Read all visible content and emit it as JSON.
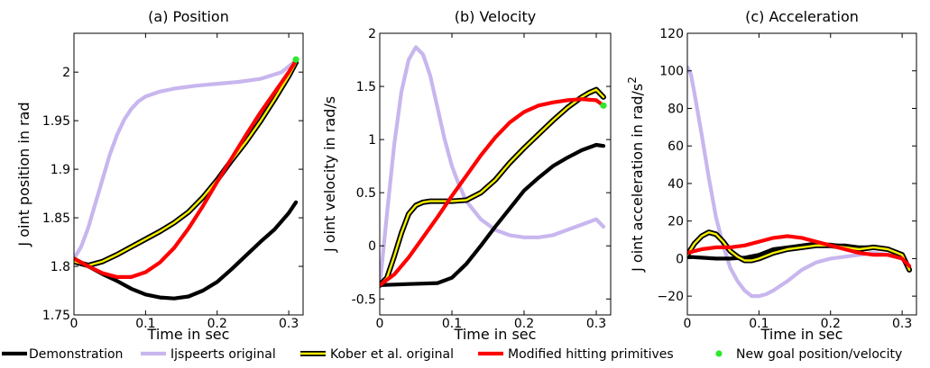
{
  "colors": {
    "demonstration": "#000000",
    "ijspeert": "#c8b6ee",
    "kober_fill": "#f5f000",
    "kober_edge": "#000000",
    "modified": "#ff0000",
    "goal": "#2ee82e"
  },
  "legend": {
    "placement": "bottom",
    "entries": [
      {
        "key": "demonstration",
        "label": "Demonstration"
      },
      {
        "key": "ijspeert",
        "label": "Ijspeerts original"
      },
      {
        "key": "kober",
        "label": "Kober et al. original"
      },
      {
        "key": "modified",
        "label": "Modified hitting primitives"
      },
      {
        "key": "goal",
        "label": "New goal position/velocity"
      }
    ]
  },
  "chart_data": [
    {
      "type": "line",
      "title": "(a) Position",
      "xlabel": "Time in sec",
      "ylabel": "J oint position in rad",
      "xlim": [
        0,
        0.32
      ],
      "ylim": [
        1.75,
        2.04
      ],
      "xticks": [
        0,
        0.1,
        0.2,
        0.3
      ],
      "xticklabels": [
        "0",
        "0.1",
        "0.2",
        "0.3"
      ],
      "yticks": [
        1.75,
        1.8,
        1.85,
        1.9,
        1.95,
        2.0
      ],
      "yticklabels": [
        "1.75",
        "1.8",
        "1.85",
        "1.9",
        "1.95",
        "2"
      ],
      "grid": false,
      "series": [
        {
          "key": "ijspeert",
          "x": [
            0,
            0.01,
            0.02,
            0.03,
            0.04,
            0.05,
            0.06,
            0.07,
            0.08,
            0.09,
            0.1,
            0.12,
            0.14,
            0.17,
            0.2,
            0.23,
            0.26,
            0.29,
            0.31
          ],
          "y": [
            1.808,
            1.82,
            1.84,
            1.865,
            1.89,
            1.915,
            1.935,
            1.951,
            1.962,
            1.97,
            1.975,
            1.98,
            1.983,
            1.986,
            1.988,
            1.99,
            1.993,
            2.0,
            2.012
          ]
        },
        {
          "key": "demonstration",
          "x": [
            0,
            0.02,
            0.04,
            0.06,
            0.08,
            0.1,
            0.12,
            0.14,
            0.16,
            0.18,
            0.2,
            0.22,
            0.24,
            0.26,
            0.28,
            0.3,
            0.31
          ],
          "y": [
            1.808,
            1.8,
            1.792,
            1.785,
            1.777,
            1.771,
            1.768,
            1.767,
            1.769,
            1.775,
            1.784,
            1.797,
            1.811,
            1.825,
            1.838,
            1.855,
            1.866
          ]
        },
        {
          "key": "kober",
          "x": [
            0,
            0.02,
            0.04,
            0.06,
            0.08,
            0.1,
            0.12,
            0.14,
            0.16,
            0.18,
            0.2,
            0.22,
            0.24,
            0.26,
            0.28,
            0.3,
            0.31
          ],
          "y": [
            1.805,
            1.801,
            1.805,
            1.812,
            1.82,
            1.828,
            1.836,
            1.845,
            1.856,
            1.871,
            1.889,
            1.909,
            1.928,
            1.949,
            1.972,
            1.996,
            2.01
          ]
        },
        {
          "key": "modified",
          "x": [
            0,
            0.02,
            0.04,
            0.06,
            0.08,
            0.1,
            0.12,
            0.14,
            0.16,
            0.18,
            0.2,
            0.22,
            0.24,
            0.26,
            0.28,
            0.3,
            0.31
          ],
          "y": [
            1.808,
            1.8,
            1.793,
            1.789,
            1.789,
            1.794,
            1.804,
            1.819,
            1.839,
            1.862,
            1.887,
            1.911,
            1.935,
            1.958,
            1.979,
            2.0,
            2.012
          ]
        }
      ],
      "goal_point": {
        "x": 0.31,
        "y": 2.013
      }
    },
    {
      "type": "line",
      "title": "(b) Velocity",
      "xlabel": "Time in sec",
      "ylabel": "J oint velocity in rad/s",
      "xlim": [
        0,
        0.32
      ],
      "ylim": [
        -0.65,
        2.0
      ],
      "xticks": [
        0,
        0.1,
        0.2,
        0.3
      ],
      "xticklabels": [
        "0",
        "0.1",
        "0.2",
        "0.3"
      ],
      "yticks": [
        -0.5,
        0,
        0.5,
        1,
        1.5,
        2
      ],
      "yticklabels": [
        "-0.5",
        "0",
        "0.5",
        "1",
        "1.5",
        "2"
      ],
      "grid": false,
      "series": [
        {
          "key": "ijspeert",
          "x": [
            0,
            0.01,
            0.02,
            0.03,
            0.04,
            0.05,
            0.06,
            0.07,
            0.08,
            0.09,
            0.1,
            0.11,
            0.12,
            0.14,
            0.16,
            0.18,
            0.2,
            0.22,
            0.24,
            0.26,
            0.28,
            0.3,
            0.31
          ],
          "y": [
            -0.38,
            0.3,
            0.95,
            1.45,
            1.75,
            1.87,
            1.8,
            1.6,
            1.3,
            1.0,
            0.75,
            0.57,
            0.42,
            0.25,
            0.15,
            0.1,
            0.08,
            0.08,
            0.1,
            0.15,
            0.2,
            0.25,
            0.18
          ]
        },
        {
          "key": "demonstration",
          "x": [
            0,
            0.02,
            0.04,
            0.06,
            0.08,
            0.1,
            0.12,
            0.14,
            0.16,
            0.18,
            0.2,
            0.22,
            0.24,
            0.26,
            0.28,
            0.3,
            0.31
          ],
          "y": [
            -0.37,
            -0.365,
            -0.36,
            -0.355,
            -0.35,
            -0.3,
            -0.17,
            0.0,
            0.18,
            0.35,
            0.52,
            0.64,
            0.75,
            0.83,
            0.9,
            0.95,
            0.94
          ]
        },
        {
          "key": "kober",
          "x": [
            0,
            0.01,
            0.02,
            0.03,
            0.04,
            0.05,
            0.06,
            0.07,
            0.08,
            0.1,
            0.12,
            0.14,
            0.16,
            0.18,
            0.2,
            0.22,
            0.24,
            0.26,
            0.28,
            0.29,
            0.3,
            0.31
          ],
          "y": [
            -0.37,
            -0.3,
            -0.1,
            0.12,
            0.3,
            0.38,
            0.41,
            0.42,
            0.42,
            0.42,
            0.43,
            0.5,
            0.62,
            0.78,
            0.92,
            1.05,
            1.18,
            1.3,
            1.4,
            1.44,
            1.47,
            1.4
          ]
        },
        {
          "key": "modified",
          "x": [
            0,
            0.02,
            0.04,
            0.06,
            0.08,
            0.1,
            0.12,
            0.14,
            0.16,
            0.18,
            0.2,
            0.22,
            0.24,
            0.26,
            0.28,
            0.3,
            0.31
          ],
          "y": [
            -0.37,
            -0.27,
            -0.11,
            0.08,
            0.27,
            0.47,
            0.66,
            0.85,
            1.02,
            1.16,
            1.26,
            1.32,
            1.35,
            1.37,
            1.38,
            1.37,
            1.32
          ]
        }
      ],
      "goal_point": {
        "x": 0.31,
        "y": 1.32
      }
    },
    {
      "type": "line",
      "title": "(c) Acceleration",
      "xlabel": "Time in sec",
      "ylabel": "J oint acceleration in rad/s",
      "ylabel_superscript": "2",
      "xlim": [
        0,
        0.32
      ],
      "ylim": [
        -30,
        120
      ],
      "xticks": [
        0,
        0.1,
        0.2,
        0.3
      ],
      "xticklabels": [
        "0",
        "0.1",
        "0.2",
        "0.3"
      ],
      "yticks": [
        -20,
        0,
        20,
        40,
        60,
        80,
        100,
        120
      ],
      "yticklabels": [
        "−20",
        "0",
        "20",
        "40",
        "60",
        "80",
        "100",
        "120"
      ],
      "grid": false,
      "series": [
        {
          "key": "ijspeert",
          "x": [
            0,
            0.005,
            0.01,
            0.02,
            0.03,
            0.04,
            0.05,
            0.06,
            0.07,
            0.08,
            0.09,
            0.1,
            0.11,
            0.12,
            0.14,
            0.16,
            0.18,
            0.2,
            0.22,
            0.24,
            0.26,
            0.28,
            0.3,
            0.31
          ],
          "y": [
            102,
            98,
            88,
            66,
            43,
            22,
            7,
            -5,
            -12,
            -17,
            -20,
            -20,
            -19,
            -17,
            -12,
            -6,
            -2,
            0,
            1,
            2,
            3,
            2,
            0,
            -6
          ]
        },
        {
          "key": "demonstration",
          "x": [
            0,
            0.02,
            0.04,
            0.06,
            0.08,
            0.1,
            0.12,
            0.14,
            0.16,
            0.18,
            0.2,
            0.22,
            0.24,
            0.26,
            0.28,
            0.3,
            0.31
          ],
          "y": [
            1,
            0.5,
            0,
            0,
            0.5,
            2,
            5,
            6,
            7,
            8,
            7,
            7,
            6,
            6,
            5,
            2,
            -6
          ]
        },
        {
          "key": "kober",
          "x": [
            0,
            0.01,
            0.02,
            0.03,
            0.04,
            0.05,
            0.06,
            0.07,
            0.08,
            0.09,
            0.1,
            0.12,
            0.14,
            0.16,
            0.18,
            0.2,
            0.22,
            0.24,
            0.26,
            0.28,
            0.3,
            0.31
          ],
          "y": [
            2,
            8,
            12,
            14,
            13,
            9,
            4,
            1,
            -1,
            -1,
            0,
            3,
            5,
            6,
            7,
            7,
            6,
            5,
            6,
            5,
            2,
            -6
          ]
        },
        {
          "key": "modified",
          "x": [
            0,
            0.02,
            0.04,
            0.06,
            0.08,
            0.1,
            0.12,
            0.14,
            0.16,
            0.18,
            0.2,
            0.22,
            0.24,
            0.26,
            0.28,
            0.3,
            0.31
          ],
          "y": [
            3,
            5,
            6,
            6,
            7,
            9,
            11,
            12,
            11,
            9,
            7,
            5,
            3,
            2,
            2,
            0,
            -4
          ]
        }
      ]
    }
  ]
}
